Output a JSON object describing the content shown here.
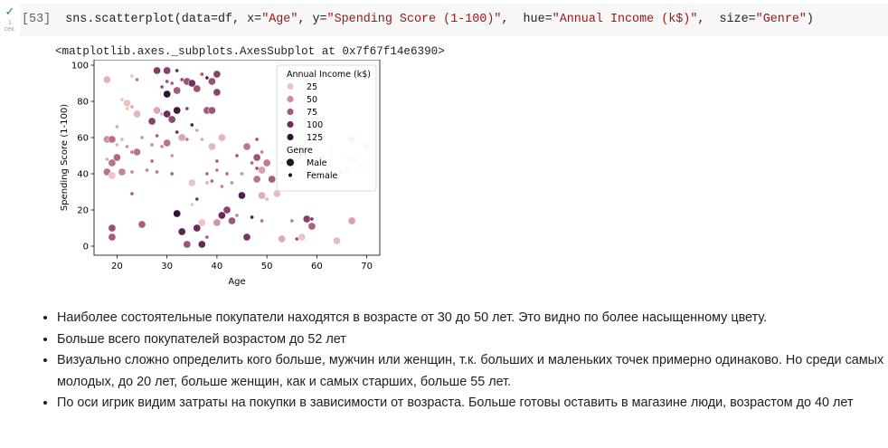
{
  "cell": {
    "run_status_label": "1\nсек.",
    "execution_count": "[53]",
    "code_parts": [
      "sns.scatterplot(data=df, x=",
      "\"Age\"",
      ", y=",
      "\"Spending Score (1-100)\"",
      ",  hue=",
      "\"Annual Income (k$)\"",
      ",  size=",
      "\"Genre\"",
      ")"
    ],
    "colors": {
      "background": "#f7f7f7",
      "string": "#a31515",
      "check": "#1e8e3e"
    }
  },
  "output": {
    "text": "<matplotlib.axes._subplots.AxesSubplot at 0x7f67f14e6390>"
  },
  "chart_data": {
    "type": "scatter",
    "xlabel": "Age",
    "ylabel": "Spending Score (1-100)",
    "xlim": [
      15.4,
      72.6
    ],
    "ylim": [
      -5,
      103
    ],
    "xticks": [
      20,
      30,
      40,
      50,
      60,
      70
    ],
    "yticks": [
      0,
      20,
      40,
      60,
      80,
      100
    ],
    "grid": false,
    "hue": "Annual Income (k$)",
    "size": "Genre",
    "legend": {
      "placement": "top-right",
      "hue_title": "Annual Income (k$)",
      "hue_entries": [
        {
          "label": "25",
          "color": "#ecc5c1"
        },
        {
          "label": "50",
          "color": "#cc8d9f"
        },
        {
          "label": "75",
          "color": "#a6577c"
        },
        {
          "label": "100",
          "color": "#6b2d5e"
        },
        {
          "label": "125",
          "color": "#2d1433"
        }
      ],
      "size_title": "Genre",
      "size_entries": [
        {
          "label": "Male",
          "size": "large"
        },
        {
          "label": "Female",
          "size": "small"
        }
      ]
    },
    "points": [
      {
        "age": 18,
        "score": 92,
        "income": 30,
        "genre": "Male"
      },
      {
        "age": 18,
        "score": 59,
        "income": 48,
        "genre": "Male"
      },
      {
        "age": 18,
        "score": 48,
        "income": 33,
        "genre": "Female"
      },
      {
        "age": 18,
        "score": 41,
        "income": 62,
        "genre": "Male"
      },
      {
        "age": 19,
        "score": 59,
        "income": 63,
        "genre": "Male"
      },
      {
        "age": 19,
        "score": 46,
        "income": 64,
        "genre": "Male"
      },
      {
        "age": 19,
        "score": 10,
        "income": 81,
        "genre": "Male"
      },
      {
        "age": 19,
        "score": 5,
        "income": 74,
        "genre": "Male"
      },
      {
        "age": 19,
        "score": 39,
        "income": 15,
        "genre": "Male"
      },
      {
        "age": 20,
        "score": 66,
        "income": 35,
        "genre": "Female"
      },
      {
        "age": 20,
        "score": 49,
        "income": 68,
        "genre": "Male"
      },
      {
        "age": 20,
        "score": 56,
        "income": 30,
        "genre": "Female"
      },
      {
        "age": 21,
        "score": 81,
        "income": 17,
        "genre": "Female"
      },
      {
        "age": 21,
        "score": 59,
        "income": 28,
        "genre": "Female"
      },
      {
        "age": 21,
        "score": 41,
        "income": 54,
        "genre": "Male"
      },
      {
        "age": 22,
        "score": 79,
        "income": 17,
        "genre": "Male"
      },
      {
        "age": 22,
        "score": 76,
        "income": 20,
        "genre": "Female"
      },
      {
        "age": 22,
        "score": 55,
        "income": 44,
        "genre": "Female"
      },
      {
        "age": 23,
        "score": 94,
        "income": 23,
        "genre": "Female"
      },
      {
        "age": 23,
        "score": 77,
        "income": 35,
        "genre": "Female"
      },
      {
        "age": 23,
        "score": 52,
        "income": 61,
        "genre": "Female"
      },
      {
        "age": 23,
        "score": 41,
        "income": 52,
        "genre": "Female"
      },
      {
        "age": 23,
        "score": 29,
        "income": 70,
        "genre": "Female"
      },
      {
        "age": 24,
        "score": 92,
        "income": 60,
        "genre": "Female"
      },
      {
        "age": 24,
        "score": 73,
        "income": 28,
        "genre": "Male"
      },
      {
        "age": 24,
        "score": 52,
        "income": 62,
        "genre": "Male"
      },
      {
        "age": 25,
        "score": 12,
        "income": 72,
        "genre": "Male"
      },
      {
        "age": 25,
        "score": 60,
        "income": 45,
        "genre": "Female"
      },
      {
        "age": 26,
        "score": 42,
        "income": 53,
        "genre": "Female"
      },
      {
        "age": 27,
        "score": 56,
        "income": 50,
        "genre": "Female"
      },
      {
        "age": 27,
        "score": 47,
        "income": 67,
        "genre": "Female"
      },
      {
        "age": 27,
        "score": 69,
        "income": 88,
        "genre": "Male"
      },
      {
        "age": 28,
        "score": 97,
        "income": 89,
        "genre": "Male"
      },
      {
        "age": 28,
        "score": 75,
        "income": 35,
        "genre": "Male"
      },
      {
        "age": 28,
        "score": 61,
        "income": 70,
        "genre": "Female"
      },
      {
        "age": 28,
        "score": 41,
        "income": 60,
        "genre": "Female"
      },
      {
        "age": 29,
        "score": 88,
        "income": 80,
        "genre": "Female"
      },
      {
        "age": 29,
        "score": 73,
        "income": 30,
        "genre": "Female"
      },
      {
        "age": 29,
        "score": 55,
        "income": 52,
        "genre": "Female"
      },
      {
        "age": 30,
        "score": 97,
        "income": 88,
        "genre": "Male"
      },
      {
        "age": 30,
        "score": 91,
        "income": 78,
        "genre": "Female"
      },
      {
        "age": 30,
        "score": 84,
        "income": 137,
        "genre": "Male"
      },
      {
        "age": 30,
        "score": 73,
        "income": 99,
        "genre": "Male"
      },
      {
        "age": 30,
        "score": 57,
        "income": 62,
        "genre": "Male"
      },
      {
        "age": 31,
        "score": 90,
        "income": 71,
        "genre": "Female"
      },
      {
        "age": 31,
        "score": 70,
        "income": 85,
        "genre": "Male"
      },
      {
        "age": 31,
        "score": 50,
        "income": 47,
        "genre": "Female"
      },
      {
        "age": 31,
        "score": 40,
        "income": 70,
        "genre": "Female"
      },
      {
        "age": 32,
        "score": 97,
        "income": 101,
        "genre": "Female"
      },
      {
        "age": 32,
        "score": 86,
        "income": 73,
        "genre": "Male"
      },
      {
        "age": 32,
        "score": 75,
        "income": 126,
        "genre": "Male"
      },
      {
        "age": 32,
        "score": 63,
        "income": 97,
        "genre": "Female"
      },
      {
        "age": 32,
        "score": 18,
        "income": 137,
        "genre": "Male"
      },
      {
        "age": 33,
        "score": 92,
        "income": 85,
        "genre": "Female"
      },
      {
        "age": 33,
        "score": 8,
        "income": 113,
        "genre": "Male"
      },
      {
        "age": 33,
        "score": 60,
        "income": 37,
        "genre": "Male"
      },
      {
        "age": 34,
        "score": 91,
        "income": 78,
        "genre": "Male"
      },
      {
        "age": 34,
        "score": 76,
        "income": 88,
        "genre": "Female"
      },
      {
        "age": 34,
        "score": 59,
        "income": 58,
        "genre": "Female"
      },
      {
        "age": 34,
        "score": 1,
        "income": 78,
        "genre": "Male"
      },
      {
        "age": 35,
        "score": 90,
        "income": 98,
        "genre": "Male"
      },
      {
        "age": 35,
        "score": 67,
        "income": 120,
        "genre": "Female"
      },
      {
        "age": 35,
        "score": 35,
        "income": 21,
        "genre": "Male"
      },
      {
        "age": 35,
        "score": 23,
        "income": 20,
        "genre": "Female"
      },
      {
        "age": 36,
        "score": 87,
        "income": 78,
        "genre": "Male"
      },
      {
        "age": 36,
        "score": 64,
        "income": 37,
        "genre": "Female"
      },
      {
        "age": 36,
        "score": 10,
        "income": 101,
        "genre": "Male"
      },
      {
        "age": 36,
        "score": 26,
        "income": 93,
        "genre": "Female"
      },
      {
        "age": 37,
        "score": 95,
        "income": 78,
        "genre": "Female"
      },
      {
        "age": 37,
        "score": 59,
        "income": 33,
        "genre": "Female"
      },
      {
        "age": 37,
        "score": 13,
        "income": 20,
        "genre": "Male"
      },
      {
        "age": 37,
        "score": 1,
        "income": 103,
        "genre": "Male"
      },
      {
        "age": 38,
        "score": 93,
        "income": 113,
        "genre": "Female"
      },
      {
        "age": 38,
        "score": 75,
        "income": 73,
        "genre": "Male"
      },
      {
        "age": 38,
        "score": 35,
        "income": 33,
        "genre": "Female"
      },
      {
        "age": 38,
        "score": 40,
        "income": 67,
        "genre": "Female"
      },
      {
        "age": 38,
        "score": 5,
        "income": 70,
        "genre": "Female"
      },
      {
        "age": 39,
        "score": 91,
        "income": 79,
        "genre": "Male"
      },
      {
        "age": 39,
        "score": 75,
        "income": 78,
        "genre": "Male"
      },
      {
        "age": 39,
        "score": 55,
        "income": 27,
        "genre": "Male"
      },
      {
        "age": 39,
        "score": 36,
        "income": 69,
        "genre": "Female"
      },
      {
        "age": 40,
        "score": 95,
        "income": 87,
        "genre": "Male"
      },
      {
        "age": 40,
        "score": 85,
        "income": 87,
        "genre": "Male"
      },
      {
        "age": 40,
        "score": 47,
        "income": 71,
        "genre": "Female"
      },
      {
        "age": 40,
        "score": 42,
        "income": 60,
        "genre": "Female"
      },
      {
        "age": 40,
        "score": 13,
        "income": 47,
        "genre": "Male"
      },
      {
        "age": 41,
        "score": 60,
        "income": 28,
        "genre": "Male"
      },
      {
        "age": 41,
        "score": 33,
        "income": 52,
        "genre": "Female"
      },
      {
        "age": 41,
        "score": 17,
        "income": 103,
        "genre": "Male"
      },
      {
        "age": 42,
        "score": 40,
        "income": 65,
        "genre": "Female"
      },
      {
        "age": 42,
        "score": 20,
        "income": 86,
        "genre": "Male"
      },
      {
        "age": 43,
        "score": 35,
        "income": 49,
        "genre": "Female"
      },
      {
        "age": 43,
        "score": 14,
        "income": 76,
        "genre": "Male"
      },
      {
        "age": 44,
        "score": 50,
        "income": 75,
        "genre": "Female"
      },
      {
        "age": 44,
        "score": 17,
        "income": 53,
        "genre": "Female"
      },
      {
        "age": 45,
        "score": 28,
        "income": 116,
        "genre": "Male"
      },
      {
        "age": 45,
        "score": 40,
        "income": 48,
        "genre": "Female"
      },
      {
        "age": 46,
        "score": 55,
        "income": 60,
        "genre": "Male"
      },
      {
        "age": 46,
        "score": 5,
        "income": 95,
        "genre": "Male"
      },
      {
        "age": 47,
        "score": 46,
        "income": 67,
        "genre": "Female"
      },
      {
        "age": 47,
        "score": 16,
        "income": 119,
        "genre": "Female"
      },
      {
        "age": 48,
        "score": 49,
        "income": 77,
        "genre": "Male"
      },
      {
        "age": 48,
        "score": 37,
        "income": 61,
        "genre": "Male"
      },
      {
        "age": 48,
        "score": 59,
        "income": 73,
        "genre": "Female"
      },
      {
        "age": 48,
        "score": 43,
        "income": 80,
        "genre": "Female"
      },
      {
        "age": 49,
        "score": 52,
        "income": 56,
        "genre": "Female"
      },
      {
        "age": 49,
        "score": 42,
        "income": 40,
        "genre": "Male"
      },
      {
        "age": 49,
        "score": 28,
        "income": 33,
        "genre": "Male"
      },
      {
        "age": 49,
        "score": 14,
        "income": 62,
        "genre": "Female"
      },
      {
        "age": 50,
        "score": 46,
        "income": 58,
        "genre": "Male"
      },
      {
        "age": 50,
        "score": 26,
        "income": 27,
        "genre": "Female"
      },
      {
        "age": 51,
        "score": 37,
        "income": 73,
        "genre": "Male"
      },
      {
        "age": 52,
        "score": 29,
        "income": 23,
        "genre": "Male"
      },
      {
        "age": 53,
        "score": 4,
        "income": 33,
        "genre": "Male"
      },
      {
        "age": 53,
        "score": 46,
        "income": 46,
        "genre": "Female"
      },
      {
        "age": 54,
        "score": 47,
        "income": 73,
        "genre": "Female"
      },
      {
        "age": 55,
        "score": 14,
        "income": 57,
        "genre": "Female"
      },
      {
        "age": 55,
        "score": 43,
        "income": 38,
        "genre": "Female"
      },
      {
        "age": 56,
        "score": 4,
        "income": 79,
        "genre": "Female"
      },
      {
        "age": 57,
        "score": 52,
        "income": 44,
        "genre": "Male"
      },
      {
        "age": 57,
        "score": 5,
        "income": 20,
        "genre": "Male"
      },
      {
        "age": 58,
        "score": 15,
        "income": 88,
        "genre": "Male"
      },
      {
        "age": 59,
        "score": 40,
        "income": 50,
        "genre": "Male"
      },
      {
        "age": 59,
        "score": 15,
        "income": 93,
        "genre": "Female"
      },
      {
        "age": 59,
        "score": 11,
        "income": 71,
        "genre": "Male"
      },
      {
        "age": 60,
        "score": 49,
        "income": 30,
        "genre": "Female"
      },
      {
        "age": 60,
        "score": 40,
        "income": 35,
        "genre": "Female"
      },
      {
        "age": 61,
        "score": 49,
        "income": 46,
        "genre": "Female"
      },
      {
        "age": 62,
        "score": 42,
        "income": 36,
        "genre": "Female"
      },
      {
        "age": 63,
        "score": 52,
        "income": 30,
        "genre": "Female"
      },
      {
        "age": 64,
        "score": 3,
        "income": 24,
        "genre": "Male"
      },
      {
        "age": 65,
        "score": 51,
        "income": 20,
        "genre": "Female"
      },
      {
        "age": 65,
        "score": 41,
        "income": 25,
        "genre": "Female"
      },
      {
        "age": 66,
        "score": 50,
        "income": 30,
        "genre": "Female"
      },
      {
        "age": 66,
        "score": 42,
        "income": 28,
        "genre": "Female"
      },
      {
        "age": 67,
        "score": 59,
        "income": 30,
        "genre": "Male"
      },
      {
        "age": 67,
        "score": 48,
        "income": 38,
        "genre": "Female"
      },
      {
        "age": 67,
        "score": 14,
        "income": 40,
        "genre": "Male"
      },
      {
        "age": 68,
        "score": 48,
        "income": 27,
        "genre": "Female"
      },
      {
        "age": 69,
        "score": 44,
        "income": 21,
        "genre": "Female"
      },
      {
        "age": 70,
        "score": 55,
        "income": 25,
        "genre": "Male"
      }
    ]
  },
  "notes": [
    "Наиболее состоятельные покупатели находятся в возрасте от 30 до 50 лет. Это видно по более насыщенному цвету.",
    "Больше всего покупателей возрастом до 52 лет",
    "Визуально сложно определить кого больше, мужчин или женщин, т.к. больших и маленьких точек примерно одинаково. Но среди самых молодых, до 20 лет, больше женщин, как и самых старших, больше 55 лет.",
    "По оси игрик видим затраты на покупки в зависимости от возраста. Больше готовы оставить в магазине люди, возрастом до 40 лет"
  ]
}
